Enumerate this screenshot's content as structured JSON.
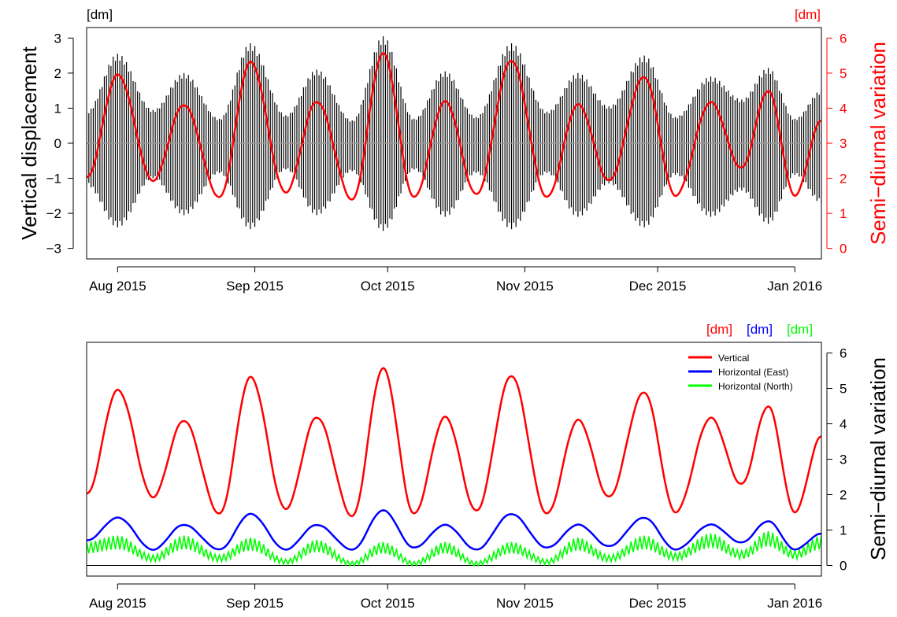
{
  "chart_data": [
    {
      "type": "line",
      "panel": "top",
      "left_axis": {
        "label": "Vertical displacement",
        "unit_label": "[dm]",
        "ylim": [
          -3.3,
          3.3
        ],
        "ticks": [
          "−3",
          "−2",
          "−1",
          "0",
          "1",
          "2",
          "3"
        ],
        "tick_values": [
          -3,
          -2,
          -1,
          0,
          1,
          2,
          3
        ]
      },
      "right_axis": {
        "label": "Semi−diurnal variation",
        "unit_label": "[dm]",
        "ylim": [
          -0.3,
          6.3
        ],
        "ticks": [
          "0",
          "1",
          "2",
          "3",
          "4",
          "5",
          "6"
        ],
        "tick_values": [
          0,
          1,
          2,
          3,
          4,
          5,
          6
        ],
        "color": "#ff0000"
      },
      "x_axis": {
        "date_range": [
          "2015-07-25",
          "2016-01-07"
        ],
        "tick_labels": [
          "Aug 2015",
          "Sep 2015",
          "Oct 2015",
          "Nov 2015",
          "Dec 2015",
          "Jan 2016"
        ],
        "tick_dates": [
          "2015-08-01",
          "2015-09-01",
          "2015-10-01",
          "2015-11-01",
          "2015-12-01",
          "2016-01-01"
        ]
      },
      "series": [
        {
          "kind": "semi-diurnal vertical displacement (dense oscillation)",
          "color": "#000000",
          "zero_line_color": "#999999",
          "envelope_upper": {
            "dates": [
              "2015-07-25",
              "2015-08-01",
              "2015-08-09",
              "2015-08-16",
              "2015-08-24",
              "2015-08-31",
              "2015-09-08",
              "2015-09-15",
              "2015-09-23",
              "2015-09-30",
              "2015-10-07",
              "2015-10-14",
              "2015-10-21",
              "2015-10-29",
              "2015-11-06",
              "2015-11-13",
              "2015-11-20",
              "2015-11-28",
              "2015-12-05",
              "2015-12-13",
              "2015-12-20",
              "2015-12-26",
              "2016-01-01",
              "2016-01-07"
            ],
            "values": [
              0.9,
              2.55,
              0.95,
              2.0,
              0.7,
              2.85,
              0.8,
              2.1,
              0.65,
              3.05,
              0.7,
              2.05,
              0.75,
              2.85,
              0.9,
              2.0,
              1.05,
              2.5,
              0.75,
              1.9,
              1.25,
              2.15,
              0.7,
              1.5
            ]
          },
          "envelope_lower": {
            "dates": [
              "2015-07-25",
              "2015-08-01",
              "2015-08-09",
              "2015-08-16",
              "2015-08-24",
              "2015-08-31",
              "2015-09-08",
              "2015-09-15",
              "2015-09-23",
              "2015-09-30",
              "2015-10-07",
              "2015-10-14",
              "2015-10-21",
              "2015-10-29",
              "2015-11-06",
              "2015-11-13",
              "2015-11-20",
              "2015-11-28",
              "2015-12-05",
              "2015-12-13",
              "2015-12-20",
              "2015-12-26",
              "2016-01-01",
              "2016-01-07"
            ],
            "values": [
              -1.2,
              -2.4,
              -1.0,
              -2.05,
              -0.85,
              -2.45,
              -0.75,
              -2.05,
              -0.8,
              -2.5,
              -0.75,
              -2.1,
              -0.85,
              -2.45,
              -0.85,
              -2.1,
              -1.15,
              -2.4,
              -0.9,
              -2.1,
              -1.35,
              -2.3,
              -0.9,
              -1.7
            ]
          }
        },
        {
          "kind": "semi-diurnal variation (right axis)",
          "color": "#ff0000",
          "dates": [
            "2015-07-25",
            "2015-08-01",
            "2015-08-09",
            "2015-08-16",
            "2015-08-24",
            "2015-08-31",
            "2015-09-08",
            "2015-09-15",
            "2015-09-23",
            "2015-09-30",
            "2015-10-07",
            "2015-10-14",
            "2015-10-21",
            "2015-10-29",
            "2015-11-06",
            "2015-11-13",
            "2015-11-20",
            "2015-11-28",
            "2015-12-05",
            "2015-12-13",
            "2015-12-20",
            "2015-12-26",
            "2016-01-01",
            "2016-01-07"
          ],
          "values": [
            2.0,
            4.95,
            1.95,
            4.1,
            1.45,
            5.3,
            1.6,
            4.2,
            1.4,
            5.55,
            1.45,
            4.2,
            1.55,
            5.35,
            1.45,
            4.1,
            1.95,
            4.9,
            1.5,
            4.15,
            2.3,
            4.5,
            1.5,
            3.65
          ]
        }
      ]
    },
    {
      "type": "line",
      "panel": "bottom",
      "right_axis": {
        "label": "Semi−diurnal variation",
        "unit_labels": [
          {
            "text": "[dm]",
            "color": "#ff0000"
          },
          {
            "text": "[dm]",
            "color": "#0000ff"
          },
          {
            "text": "[dm]",
            "color": "#00ff00"
          }
        ],
        "ylim": [
          -0.3,
          6.3
        ],
        "ticks": [
          "0",
          "1",
          "2",
          "3",
          "4",
          "5",
          "6"
        ],
        "tick_values": [
          0,
          1,
          2,
          3,
          4,
          5,
          6
        ]
      },
      "x_axis": {
        "date_range": [
          "2015-07-25",
          "2016-01-07"
        ],
        "tick_labels": [
          "Aug 2015",
          "Sep 2015",
          "Oct 2015",
          "Nov 2015",
          "Dec 2015",
          "Jan 2016"
        ],
        "tick_dates": [
          "2015-08-01",
          "2015-09-01",
          "2015-10-01",
          "2015-11-01",
          "2015-12-01",
          "2016-01-01"
        ]
      },
      "legend": {
        "position": "top-right"
      },
      "series": [
        {
          "name": "Vertical",
          "color": "#ff0000",
          "dates": [
            "2015-07-25",
            "2015-08-01",
            "2015-08-09",
            "2015-08-16",
            "2015-08-24",
            "2015-08-31",
            "2015-09-08",
            "2015-09-15",
            "2015-09-23",
            "2015-09-30",
            "2015-10-07",
            "2015-10-14",
            "2015-10-21",
            "2015-10-29",
            "2015-11-06",
            "2015-11-13",
            "2015-11-20",
            "2015-11-28",
            "2015-12-05",
            "2015-12-13",
            "2015-12-20",
            "2015-12-26",
            "2016-01-01",
            "2016-01-07"
          ],
          "values": [
            2.0,
            4.95,
            1.95,
            4.1,
            1.45,
            5.3,
            1.6,
            4.2,
            1.4,
            5.55,
            1.45,
            4.2,
            1.55,
            5.35,
            1.45,
            4.1,
            1.95,
            4.9,
            1.5,
            4.15,
            2.3,
            4.5,
            1.5,
            3.65
          ]
        },
        {
          "name": "Horizontal (East)",
          "color": "#0000ff",
          "dates": [
            "2015-07-25",
            "2015-08-01",
            "2015-08-09",
            "2015-08-16",
            "2015-08-24",
            "2015-08-31",
            "2015-09-08",
            "2015-09-15",
            "2015-09-23",
            "2015-09-30",
            "2015-10-07",
            "2015-10-14",
            "2015-10-21",
            "2015-10-29",
            "2015-11-06",
            "2015-11-13",
            "2015-11-20",
            "2015-11-28",
            "2015-12-05",
            "2015-12-13",
            "2015-12-20",
            "2015-12-26",
            "2016-01-01",
            "2016-01-07"
          ],
          "values": [
            0.7,
            1.35,
            0.45,
            1.15,
            0.45,
            1.45,
            0.45,
            1.15,
            0.45,
            1.55,
            0.5,
            1.15,
            0.45,
            1.45,
            0.5,
            1.15,
            0.55,
            1.35,
            0.45,
            1.15,
            0.65,
            1.25,
            0.45,
            0.9
          ]
        },
        {
          "name": "Horizontal (North)",
          "color": "#00ff00",
          "dates": [
            "2015-07-25",
            "2015-08-01",
            "2015-08-09",
            "2015-08-16",
            "2015-08-24",
            "2015-08-31",
            "2015-09-08",
            "2015-09-15",
            "2015-09-23",
            "2015-09-30",
            "2015-10-07",
            "2015-10-14",
            "2015-10-21",
            "2015-10-29",
            "2015-11-06",
            "2015-11-13",
            "2015-11-20",
            "2015-11-28",
            "2015-12-05",
            "2015-12-13",
            "2015-12-20",
            "2015-12-26",
            "2016-01-01",
            "2016-01-07"
          ],
          "values": [
            0.5,
            0.65,
            0.2,
            0.65,
            0.2,
            0.6,
            0.1,
            0.55,
            0.05,
            0.5,
            0.05,
            0.5,
            0.05,
            0.5,
            0.1,
            0.6,
            0.2,
            0.65,
            0.25,
            0.7,
            0.3,
            0.75,
            0.3,
            0.65
          ]
        }
      ]
    }
  ]
}
